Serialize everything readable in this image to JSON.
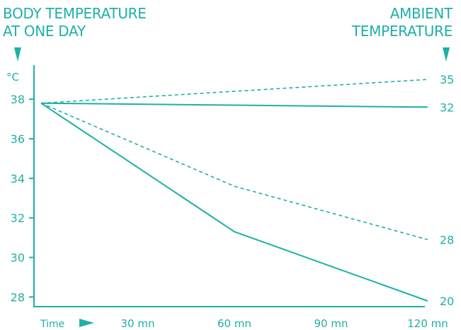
{
  "header": {
    "left_line1": "BODY TEMPERATURE",
    "left_line2": "AT ONE DAY",
    "right_line1": "AMBIENT",
    "right_line2": "TEMPERATURE"
  },
  "colors": {
    "accent": "#1fb0a6"
  },
  "chart_data": {
    "type": "line",
    "title": "",
    "ylabel": "°C",
    "xlabel": "Time",
    "ylim": [
      27.8,
      39.4
    ],
    "xlim": [
      0,
      120
    ],
    "yticks": [
      28,
      30,
      32,
      34,
      36,
      38
    ],
    "xticks": [
      {
        "value": 30,
        "label": "30 mn"
      },
      {
        "value": 60,
        "label": "60 mn"
      },
      {
        "value": 90,
        "label": "90 mn"
      },
      {
        "value": 120,
        "label": "120 mn"
      }
    ],
    "right_axis_title": "AMBIENT TEMPERATURE",
    "series": [
      {
        "name": "35",
        "style": "dashed",
        "x": [
          0,
          120
        ],
        "y": [
          37.8,
          39.0
        ]
      },
      {
        "name": "32",
        "style": "solid",
        "x": [
          0,
          120
        ],
        "y": [
          37.8,
          37.6
        ]
      },
      {
        "name": "28",
        "style": "dashed",
        "x": [
          0,
          60,
          120
        ],
        "y": [
          37.8,
          33.6,
          30.9
        ]
      },
      {
        "name": "20",
        "style": "solid",
        "x": [
          0,
          60,
          120
        ],
        "y": [
          37.8,
          31.3,
          27.8
        ]
      }
    ]
  }
}
